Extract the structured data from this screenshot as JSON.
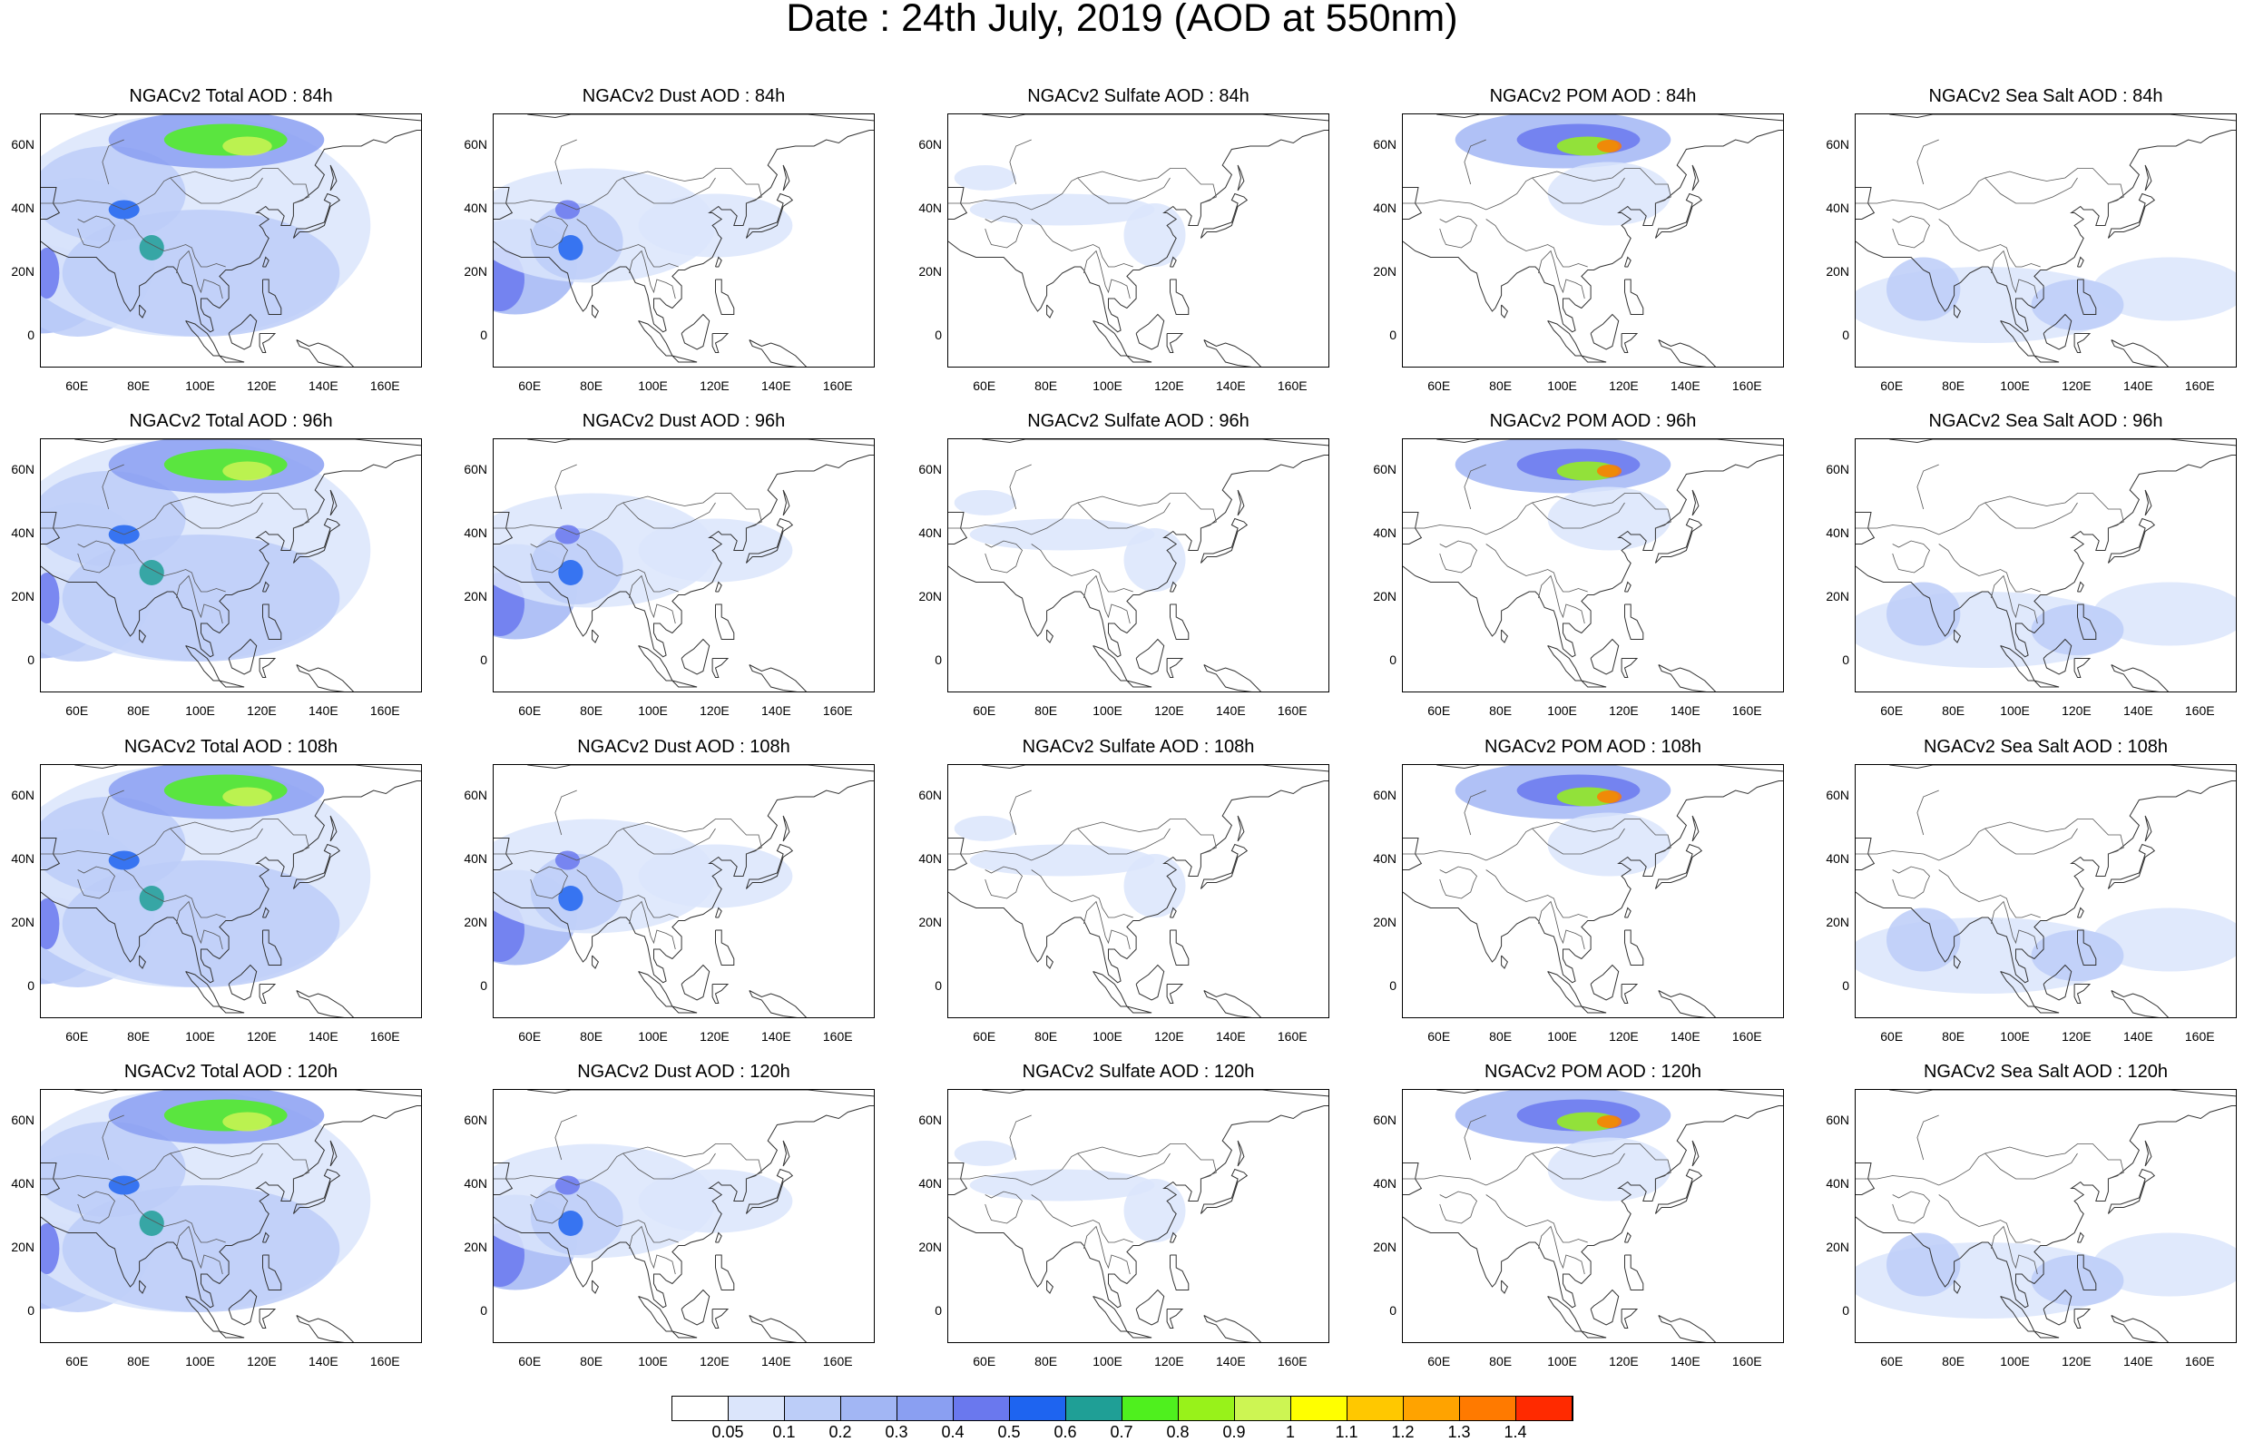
{
  "title": "Date : 24th July, 2019 (AOD at 550nm)",
  "panel_titles": [
    [
      "NGACv2 Total AOD : 84h",
      "NGACv2 Dust AOD : 84h",
      "NGACv2 Sulfate AOD : 84h",
      "NGACv2 POM AOD : 84h",
      "NGACv2 Sea Salt AOD : 84h"
    ],
    [
      "NGACv2 Total AOD : 96h",
      "NGACv2 Dust AOD : 96h",
      "NGACv2 Sulfate AOD : 96h",
      "NGACv2 POM AOD : 96h",
      "NGACv2 Sea Salt AOD : 96h"
    ],
    [
      "NGACv2 Total AOD : 108h",
      "NGACv2 Dust AOD : 108h",
      "NGACv2 Sulfate AOD : 108h",
      "NGACv2 POM AOD : 108h",
      "NGACv2 Sea Salt AOD : 108h"
    ],
    [
      "NGACv2 Total AOD : 120h",
      "NGACv2 Dust AOD : 120h",
      "NGACv2 Sulfate AOD : 120h",
      "NGACv2 POM AOD : 120h",
      "NGACv2 Sea Salt  AOD : 120h"
    ]
  ],
  "lat_labels": [
    "60N",
    "40N",
    "20N",
    "0"
  ],
  "lon_labels": [
    "60E",
    "80E",
    "100E",
    "120E",
    "140E",
    "160E"
  ],
  "colorbar": {
    "labels": [
      "0.05",
      "0.1",
      "0.2",
      "0.3",
      "0.4",
      "0.5",
      "0.6",
      "0.7",
      "0.8",
      "0.9",
      "1",
      "1.1",
      "1.2",
      "1.3",
      "1.4"
    ],
    "colors": [
      "#ffffff",
      "#dbe5fb",
      "#bccdf8",
      "#a2b6f4",
      "#8a9ff2",
      "#6a78ee",
      "#1e64f0",
      "#1f9f96",
      "#4ff01e",
      "#98f21a",
      "#cdf553",
      "#ffff00",
      "#ffc800",
      "#ffa300",
      "#ff7a00",
      "#ff2a00"
    ]
  }
}
